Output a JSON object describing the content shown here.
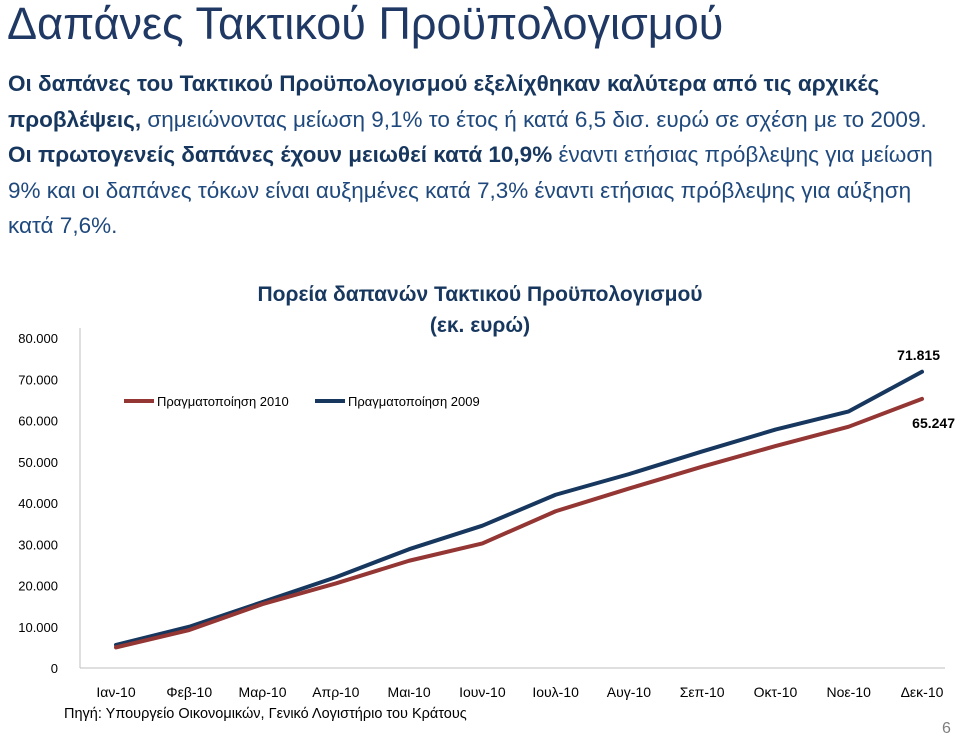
{
  "slide": {
    "title": "Δαπάνες Τακτικού Προϋπολογισμού",
    "para1_bold": "Οι δαπάνες του Τακτικού Προϋπολογισμού εξελίχθηκαν καλύτερα από τις αρχικές προβλέψεις,",
    "para1_rest": " σημειώνοντας μείωση 9,1% το έτος ή κατά 6,5 δισ. ευρώ σε σχέση με το 2009.",
    "para2_bold": "Οι πρωτογενείς δαπάνες έχουν μειωθεί κατά 10,9%",
    "para2_rest": " έναντι ετήσιας πρόβλεψης για μείωση 9% και οι δαπάνες τόκων είναι αυξημένες κατά 7,3% έναντι ετήσιας πρόβλεψης για αύξηση κατά 7,6%.",
    "source": "Πηγή: Υπουργείο Οικονομικών, Γενικό Λογιστήριο του Κράτους",
    "page_number": "6"
  },
  "chart_data": {
    "type": "line",
    "title_line1": "Πορεία δαπανών Τακτικού Προϋπολογισμού",
    "title_line2": "(εκ. ευρώ)",
    "categories": [
      "Ιαν-10",
      "Φεβ-10",
      "Μαρ-10",
      "Απρ-10",
      "Μαι-10",
      "Ιουν-10",
      "Ιουλ-10",
      "Αυγ-10",
      "Σεπ-10",
      "Οκτ-10",
      "Νοε-10",
      "Δεκ-10"
    ],
    "ytick_labels": [
      "0",
      "10.000",
      "20.000",
      "30.000",
      "40.000",
      "50.000",
      "60.000",
      "70.000",
      "80.000"
    ],
    "ylim": [
      0,
      80000
    ],
    "y_step": 10000,
    "legend_position": "top-left",
    "grid": false,
    "series": [
      {
        "name": "Πραγματοποίηση 2010",
        "color": "#943634",
        "values": [
          5000,
          9200,
          15500,
          20500,
          26000,
          30200,
          38000,
          43500,
          48800,
          53800,
          58500,
          65247
        ],
        "end_label": "65.247"
      },
      {
        "name": "Πραγματοποίηση 2009",
        "color": "#17375e",
        "values": [
          5600,
          10000,
          16000,
          22000,
          28800,
          34500,
          42000,
          47000,
          52500,
          57800,
          62200,
          71815
        ],
        "end_label": "71.815"
      }
    ]
  }
}
